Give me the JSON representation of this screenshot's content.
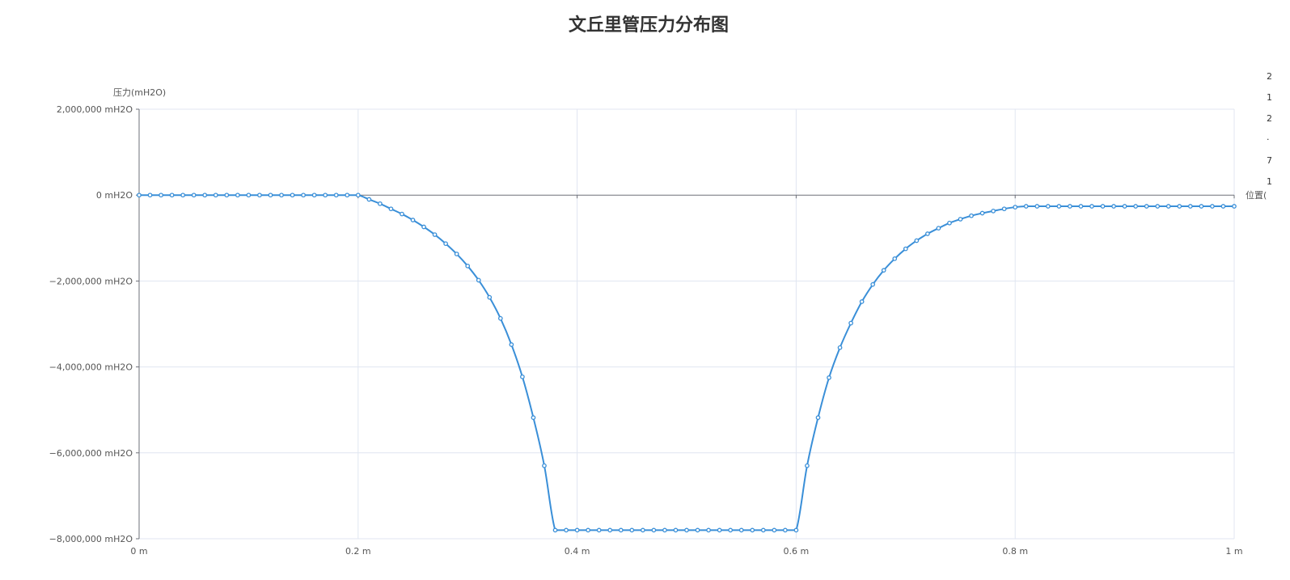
{
  "chart_data": {
    "type": "line",
    "title": "文丘里管压力分布图",
    "xlabel": "位置(",
    "ylabel": "压力(mH2O)",
    "x_unit": "m",
    "y_unit": "mH2O",
    "xlim": [
      0,
      1
    ],
    "ylim": [
      -8000000,
      2000000
    ],
    "x_ticks": [
      0,
      0.2,
      0.4,
      0.6,
      0.8,
      1
    ],
    "y_ticks": [
      2000000,
      0,
      -2000000,
      -4000000,
      -6000000,
      -8000000
    ],
    "x_tick_labels": [
      "0 m",
      "0.2 m",
      "0.4 m",
      "0.6 m",
      "0.8 m",
      "1 m"
    ],
    "y_tick_labels": [
      "2,000,000 mH2O",
      "0 mH2O",
      "−2,000,000 mH2O",
      "−4,000,000 mH2O",
      "−6,000,000 mH2O",
      "−8,000,000 mH2O"
    ],
    "grid": true,
    "colors": {
      "series": "#3a8fd8",
      "grid": "#e0e6f1",
      "axis": "#6e7079"
    },
    "legend_partial_glyphs": [
      "2",
      "1",
      "2",
      "·",
      "7",
      "1"
    ],
    "series": [
      {
        "color": "#3a8fd8",
        "x": [
          0,
          0.01,
          0.02,
          0.03,
          0.04,
          0.05,
          0.06,
          0.07,
          0.08,
          0.09,
          0.1,
          0.11,
          0.12,
          0.13,
          0.14,
          0.15,
          0.16,
          0.17,
          0.18,
          0.19,
          0.2,
          0.21,
          0.22,
          0.23,
          0.24,
          0.25,
          0.26,
          0.27,
          0.28,
          0.29,
          0.3,
          0.31,
          0.32,
          0.33,
          0.34,
          0.35,
          0.36,
          0.37,
          0.38,
          0.39,
          0.4,
          0.41,
          0.42,
          0.43,
          0.44,
          0.45,
          0.46,
          0.47,
          0.48,
          0.49,
          0.5,
          0.51,
          0.52,
          0.53,
          0.54,
          0.55,
          0.56,
          0.57,
          0.58,
          0.59,
          0.6,
          0.61,
          0.62,
          0.63,
          0.64,
          0.65,
          0.66,
          0.67,
          0.68,
          0.69,
          0.7,
          0.71,
          0.72,
          0.73,
          0.74,
          0.75,
          0.76,
          0.77,
          0.78,
          0.79,
          0.8,
          0.81,
          0.82,
          0.83,
          0.84,
          0.85,
          0.86,
          0.87,
          0.88,
          0.89,
          0.9,
          0.91,
          0.92,
          0.93,
          0.94,
          0.95,
          0.96,
          0.97,
          0.98,
          0.99,
          1
        ],
        "values": [
          0,
          0,
          0,
          0,
          0,
          0,
          0,
          0,
          0,
          0,
          0,
          0,
          0,
          0,
          0,
          0,
          0,
          0,
          0,
          0,
          0,
          -100000,
          -200000,
          -320000,
          -440000,
          -580000,
          -740000,
          -920000,
          -1130000,
          -1370000,
          -1650000,
          -1980000,
          -2380000,
          -2870000,
          -3480000,
          -4230000,
          -5180000,
          -6300000,
          -7800000,
          -7800000,
          -7800000,
          -7800000,
          -7800000,
          -7800000,
          -7800000,
          -7800000,
          -7800000,
          -7800000,
          -7800000,
          -7800000,
          -7800000,
          -7800000,
          -7800000,
          -7800000,
          -7800000,
          -7800000,
          -7800000,
          -7800000,
          -7800000,
          -7800000,
          -7800000,
          -6300000,
          -5180000,
          -4250000,
          -3550000,
          -2980000,
          -2480000,
          -2080000,
          -1750000,
          -1480000,
          -1250000,
          -1060000,
          -900000,
          -770000,
          -650000,
          -560000,
          -480000,
          -420000,
          -370000,
          -320000,
          -280000,
          -260000,
          -260000,
          -260000,
          -260000,
          -260000,
          -260000,
          -260000,
          -260000,
          -260000,
          -260000,
          -260000,
          -260000,
          -260000,
          -260000,
          -260000,
          -260000,
          -260000,
          -260000,
          -260000,
          -260000
        ]
      }
    ]
  }
}
